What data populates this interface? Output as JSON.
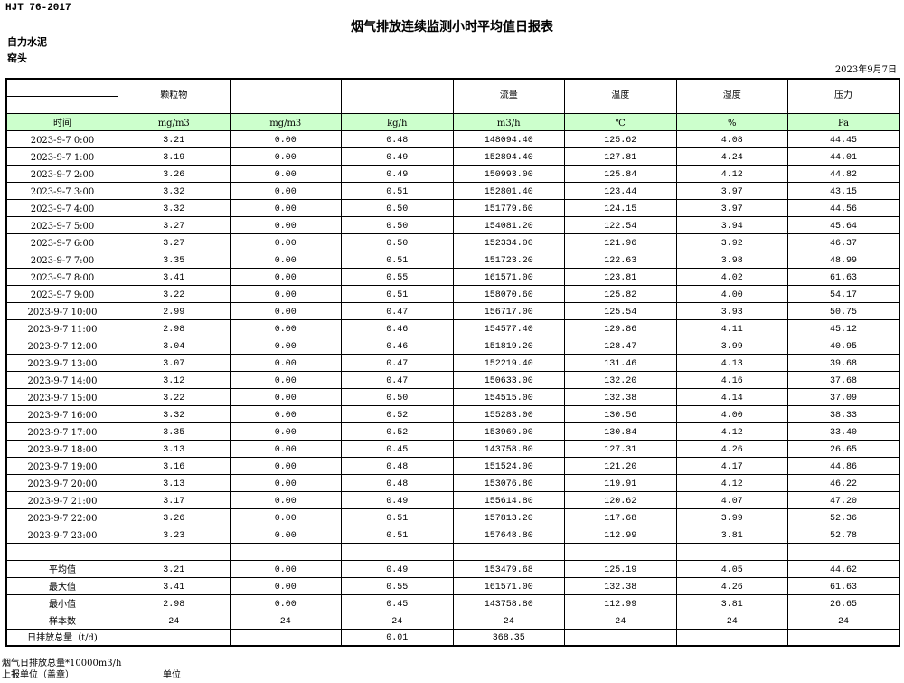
{
  "header": {
    "standard": "HJT  76-2017",
    "title": "烟气排放连续监测小时平均值日报表",
    "company": "自力水泥",
    "unit": "窑头",
    "date": "2023年9月7日"
  },
  "columns": [
    "",
    "颗粒物",
    "",
    "",
    "流量",
    "温度",
    "湿度",
    "压力"
  ],
  "units": [
    "时间",
    "mg/m3",
    "mg/m3",
    "kg/h",
    "m3/h",
    "℃",
    "%",
    "Pa"
  ],
  "rows": [
    [
      "2023-9-7 0:00",
      "3.21",
      "0.00",
      "0.48",
      "148094.40",
      "125.62",
      "4.08",
      "44.45"
    ],
    [
      "2023-9-7 1:00",
      "3.19",
      "0.00",
      "0.49",
      "152894.40",
      "127.81",
      "4.24",
      "44.01"
    ],
    [
      "2023-9-7 2:00",
      "3.26",
      "0.00",
      "0.49",
      "150993.00",
      "125.84",
      "4.12",
      "44.82"
    ],
    [
      "2023-9-7 3:00",
      "3.32",
      "0.00",
      "0.51",
      "152801.40",
      "123.44",
      "3.97",
      "43.15"
    ],
    [
      "2023-9-7 4:00",
      "3.32",
      "0.00",
      "0.50",
      "151779.60",
      "124.15",
      "3.97",
      "44.56"
    ],
    [
      "2023-9-7 5:00",
      "3.27",
      "0.00",
      "0.50",
      "154081.20",
      "122.54",
      "3.94",
      "45.64"
    ],
    [
      "2023-9-7 6:00",
      "3.27",
      "0.00",
      "0.50",
      "152334.00",
      "121.96",
      "3.92",
      "46.37"
    ],
    [
      "2023-9-7 7:00",
      "3.35",
      "0.00",
      "0.51",
      "151723.20",
      "122.63",
      "3.98",
      "48.99"
    ],
    [
      "2023-9-7 8:00",
      "3.41",
      "0.00",
      "0.55",
      "161571.00",
      "123.81",
      "4.02",
      "61.63"
    ],
    [
      "2023-9-7 9:00",
      "3.22",
      "0.00",
      "0.51",
      "158070.60",
      "125.82",
      "4.00",
      "54.17"
    ],
    [
      "2023-9-7 10:00",
      "2.99",
      "0.00",
      "0.47",
      "156717.00",
      "125.54",
      "3.93",
      "50.75"
    ],
    [
      "2023-9-7 11:00",
      "2.98",
      "0.00",
      "0.46",
      "154577.40",
      "129.86",
      "4.11",
      "45.12"
    ],
    [
      "2023-9-7 12:00",
      "3.04",
      "0.00",
      "0.46",
      "151819.20",
      "128.47",
      "3.99",
      "40.95"
    ],
    [
      "2023-9-7 13:00",
      "3.07",
      "0.00",
      "0.47",
      "152219.40",
      "131.46",
      "4.13",
      "39.68"
    ],
    [
      "2023-9-7 14:00",
      "3.12",
      "0.00",
      "0.47",
      "150633.00",
      "132.20",
      "4.16",
      "37.68"
    ],
    [
      "2023-9-7 15:00",
      "3.22",
      "0.00",
      "0.50",
      "154515.00",
      "132.38",
      "4.14",
      "37.09"
    ],
    [
      "2023-9-7 16:00",
      "3.32",
      "0.00",
      "0.52",
      "155283.00",
      "130.56",
      "4.00",
      "38.33"
    ],
    [
      "2023-9-7 17:00",
      "3.35",
      "0.00",
      "0.52",
      "153969.00",
      "130.84",
      "4.12",
      "33.40"
    ],
    [
      "2023-9-7 18:00",
      "3.13",
      "0.00",
      "0.45",
      "143758.80",
      "127.31",
      "4.26",
      "26.65"
    ],
    [
      "2023-9-7 19:00",
      "3.16",
      "0.00",
      "0.48",
      "151524.00",
      "121.20",
      "4.17",
      "44.86"
    ],
    [
      "2023-9-7 20:00",
      "3.13",
      "0.00",
      "0.48",
      "153076.80",
      "119.91",
      "4.12",
      "46.22"
    ],
    [
      "2023-9-7 21:00",
      "3.17",
      "0.00",
      "0.49",
      "155614.80",
      "120.62",
      "4.07",
      "47.20"
    ],
    [
      "2023-9-7 22:00",
      "3.26",
      "0.00",
      "0.51",
      "157813.20",
      "117.68",
      "3.99",
      "52.36"
    ],
    [
      "2023-9-7 23:00",
      "3.23",
      "0.00",
      "0.51",
      "157648.80",
      "112.99",
      "3.81",
      "52.78"
    ]
  ],
  "summary": [
    [
      "平均值",
      "3.21",
      "0.00",
      "0.49",
      "153479.68",
      "125.19",
      "4.05",
      "44.62"
    ],
    [
      "最大值",
      "3.41",
      "0.00",
      "0.55",
      "161571.00",
      "132.38",
      "4.26",
      "61.63"
    ],
    [
      "最小值",
      "2.98",
      "0.00",
      "0.45",
      "143758.80",
      "112.99",
      "3.81",
      "26.65"
    ],
    [
      "样本数",
      "24",
      "24",
      "24",
      "24",
      "24",
      "24",
      "24"
    ],
    [
      "日排放总量（t/d)",
      "",
      "",
      "0.01",
      "368.35",
      "",
      "",
      ""
    ]
  ],
  "footer": {
    "note": "烟气日排放总量*10000m3/h",
    "reporter": "上报单位（盖章）",
    "unit_label": "单位"
  },
  "colors": {
    "unit_row_bg": "#ccffcc"
  }
}
